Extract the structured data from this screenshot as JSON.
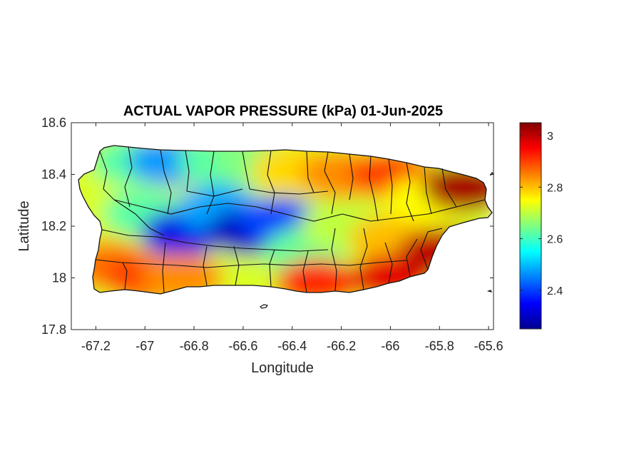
{
  "chart_data": {
    "type": "heatmap",
    "title": "ACTUAL VAPOR PRESSURE (kPa) 01-Jun-2025",
    "xlabel": "Longitude",
    "ylabel": "Latitude",
    "xlim": [
      -67.3,
      -65.58
    ],
    "ylim": [
      17.8,
      18.6
    ],
    "x_ticks": [
      -67.2,
      -67,
      -66.8,
      -66.6,
      -66.4,
      -66.2,
      -66,
      -65.8,
      -65.6
    ],
    "x_tick_labels": [
      "-67.2",
      "-67",
      "-66.8",
      "-66.6",
      "-66.4",
      "-66.2",
      "-66",
      "-65.8",
      "-65.6"
    ],
    "y_ticks": [
      17.8,
      18,
      18.2,
      18.4,
      18.6
    ],
    "y_tick_labels": [
      "17.8",
      "18",
      "18.2",
      "18.4",
      "18.6"
    ],
    "colorbar": {
      "colormap": "jet",
      "range": [
        2.25,
        3.05
      ],
      "ticks": [
        2.4,
        2.6,
        2.8,
        3.0
      ],
      "tick_labels": [
        "2.4",
        "2.6",
        "2.8",
        "3"
      ],
      "placement": "right"
    },
    "region": "Puerto Rico",
    "field_samples": [
      {
        "lon": -67.2,
        "lat": 18.35,
        "value": 2.72
      },
      {
        "lon": -67.15,
        "lat": 18.05,
        "value": 2.86
      },
      {
        "lon": -67.05,
        "lat": 18.45,
        "value": 2.62
      },
      {
        "lon": -67.0,
        "lat": 18.25,
        "value": 2.62
      },
      {
        "lon": -67.0,
        "lat": 18.0,
        "value": 2.9
      },
      {
        "lon": -66.9,
        "lat": 18.45,
        "value": 2.47
      },
      {
        "lon": -66.85,
        "lat": 18.17,
        "value": 2.33
      },
      {
        "lon": -66.85,
        "lat": 18.0,
        "value": 2.84
      },
      {
        "lon": -66.7,
        "lat": 18.45,
        "value": 2.62
      },
      {
        "lon": -66.7,
        "lat": 18.27,
        "value": 2.48
      },
      {
        "lon": -66.58,
        "lat": 18.18,
        "value": 2.3
      },
      {
        "lon": -66.55,
        "lat": 18.45,
        "value": 2.65
      },
      {
        "lon": -66.45,
        "lat": 18.22,
        "value": 2.4
      },
      {
        "lon": -66.4,
        "lat": 18.42,
        "value": 2.78
      },
      {
        "lon": -66.35,
        "lat": 18.1,
        "value": 2.63
      },
      {
        "lon": -66.3,
        "lat": 17.98,
        "value": 2.92
      },
      {
        "lon": -66.2,
        "lat": 18.4,
        "value": 2.84
      },
      {
        "lon": -66.2,
        "lat": 18.2,
        "value": 2.7
      },
      {
        "lon": -66.0,
        "lat": 18.4,
        "value": 2.9
      },
      {
        "lon": -66.0,
        "lat": 18.15,
        "value": 2.8
      },
      {
        "lon": -66.0,
        "lat": 18.0,
        "value": 2.97
      },
      {
        "lon": -65.85,
        "lat": 18.3,
        "value": 2.75
      },
      {
        "lon": -65.8,
        "lat": 18.1,
        "value": 3.0
      },
      {
        "lon": -65.7,
        "lat": 18.35,
        "value": 3.02
      }
    ]
  }
}
